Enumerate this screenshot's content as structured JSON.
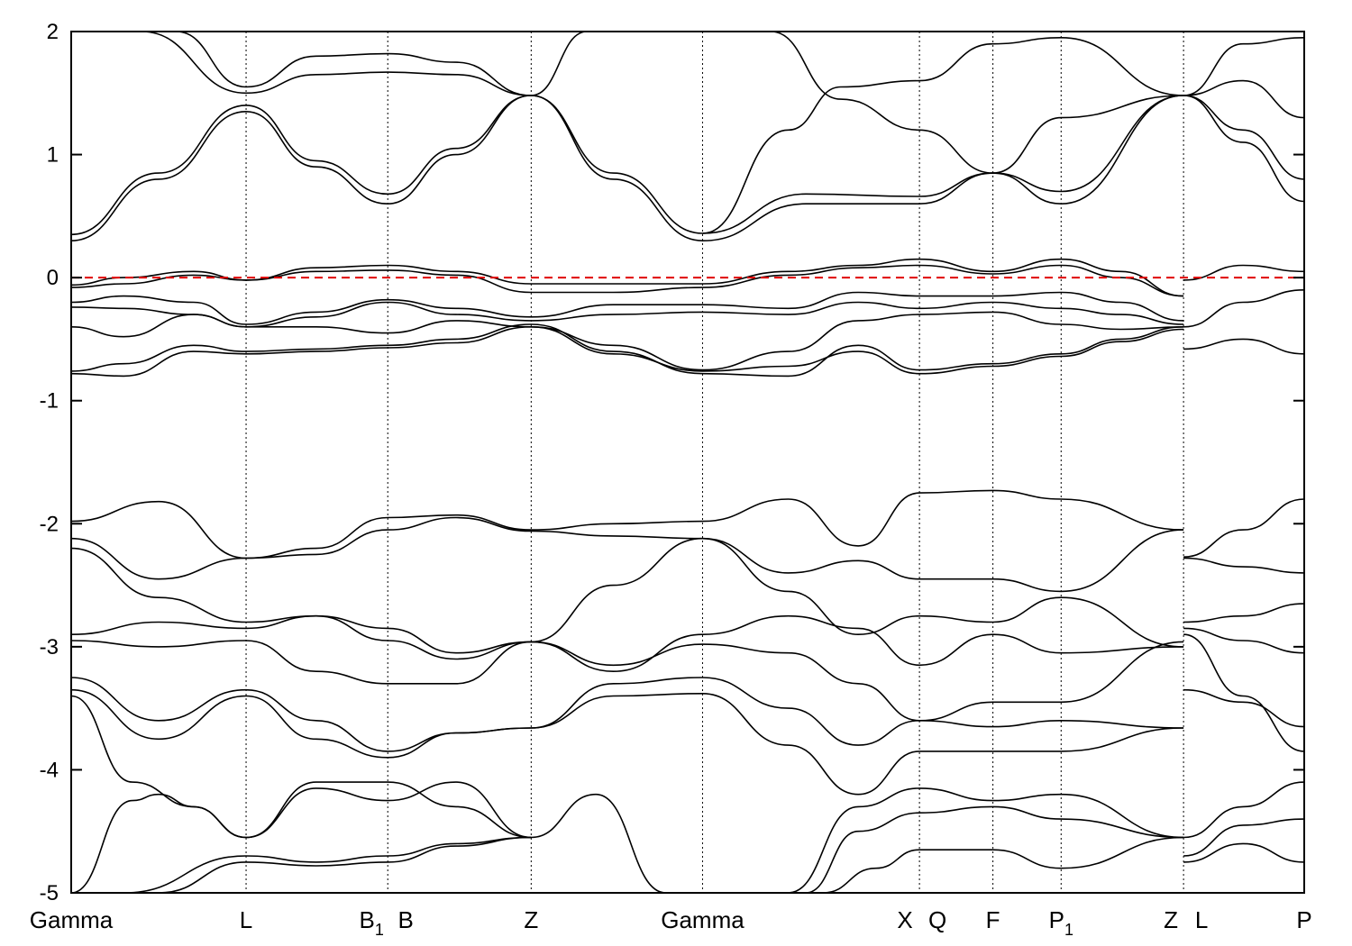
{
  "chart_data": {
    "type": "line",
    "title": "",
    "xlabel": "",
    "ylabel": "",
    "ylim": [
      -5,
      2
    ],
    "yticks": [
      -5,
      -4,
      -3,
      -2,
      -1,
      0,
      1,
      2
    ],
    "ytick_labels": [
      "-5",
      "-4",
      "-3",
      "-2",
      "-1",
      "0",
      "1",
      "2"
    ],
    "grid": false,
    "legend": "none",
    "fermi_level": {
      "y": 0,
      "style": "dashed",
      "color": "#e00000"
    },
    "high_symmetry_points": [
      {
        "label": "Gamma",
        "x": 0.0
      },
      {
        "label": "L",
        "x": 1.0
      },
      {
        "label": "B",
        "sub": "1",
        "x": 1.81
      },
      {
        "label": "B",
        "x": 1.81
      },
      {
        "label": "Z",
        "x": 2.63
      },
      {
        "label": "Gamma",
        "x": 3.61
      },
      {
        "label": "X",
        "x": 4.85
      },
      {
        "label": "Q",
        "x": 4.85
      },
      {
        "label": "F",
        "x": 5.27
      },
      {
        "label": "P",
        "sub": "1",
        "x": 5.66
      },
      {
        "label": "Z",
        "x": 6.36
      },
      {
        "label": "L",
        "x": 6.36
      },
      {
        "label": "P",
        "x": 7.05
      }
    ],
    "series": [
      {
        "x": [
          0,
          0.5,
          1,
          1.4,
          1.81,
          2.2,
          2.63,
          3.1,
          3.61,
          4.2,
          4.85,
          5.27,
          5.66,
          6.36
        ],
        "y": [
          0.3,
          0.8,
          1.35,
          0.9,
          0.6,
          1.0,
          1.48,
          0.8,
          0.3,
          0.6,
          0.6,
          0.85,
          0.6,
          1.48
        ]
      },
      {
        "x": [
          0,
          0.5,
          1,
          1.4,
          1.81,
          2.2,
          2.63,
          3.1,
          3.61,
          4.2,
          4.85,
          5.27,
          5.66,
          6.36
        ],
        "y": [
          0.35,
          0.85,
          1.4,
          0.95,
          0.68,
          1.05,
          1.48,
          0.85,
          0.36,
          0.68,
          0.66,
          0.85,
          0.7,
          1.48
        ]
      },
      {
        "x": [
          0.4,
          1,
          1.4,
          1.81,
          2.2,
          2.63
        ],
        "y": [
          2.0,
          1.5,
          1.65,
          1.67,
          1.65,
          1.48
        ]
      },
      {
        "x": [
          0.6,
          1,
          1.4,
          1.81,
          2.2,
          2.63
        ],
        "y": [
          2.0,
          1.55,
          1.8,
          1.82,
          1.75,
          1.48
        ]
      },
      {
        "x": [
          2.63,
          2.95
        ],
        "y": [
          1.48,
          2.0
        ]
      },
      {
        "x": [
          3.61,
          4.1,
          4.4,
          4.85,
          5.27,
          5.66,
          6.36
        ],
        "y": [
          0.36,
          1.2,
          1.55,
          1.6,
          1.9,
          1.95,
          1.48
        ]
      },
      {
        "x": [
          4.0,
          4.4,
          4.85,
          5.27,
          5.66,
          6.36
        ],
        "y": [
          2.0,
          1.45,
          1.2,
          0.85,
          1.3,
          1.48
        ]
      },
      {
        "x": [
          6.36,
          6.7,
          7.05
        ],
        "y": [
          1.48,
          1.9,
          1.95
        ]
      },
      {
        "x": [
          6.36,
          6.7,
          7.05
        ],
        "y": [
          1.48,
          1.2,
          0.8
        ]
      },
      {
        "x": [
          6.36,
          6.7,
          7.05
        ],
        "y": [
          1.48,
          1.1,
          0.62
        ]
      },
      {
        "x": [
          6.36,
          6.7,
          7.05
        ],
        "y": [
          1.48,
          1.6,
          1.3
        ]
      },
      {
        "x": [
          0,
          0.3,
          0.7,
          1,
          1.4,
          1.81,
          2.2,
          2.63,
          3.1,
          3.61,
          4.1,
          4.5,
          4.85,
          5.27,
          5.66,
          6.0,
          6.36
        ],
        "y": [
          -0.06,
          0.0,
          0.05,
          -0.02,
          0.08,
          0.1,
          0.05,
          -0.05,
          -0.05,
          -0.05,
          0.05,
          0.1,
          0.15,
          0.05,
          0.15,
          0.05,
          -0.15
        ]
      },
      {
        "x": [
          0,
          0.3,
          0.7,
          1,
          1.4,
          1.81,
          2.2,
          2.63,
          3.1,
          3.61,
          4.1,
          4.5,
          4.85,
          5.27,
          5.66,
          6.0,
          6.36
        ],
        "y": [
          -0.08,
          -0.05,
          0.02,
          -0.02,
          0.05,
          0.06,
          0.02,
          -0.12,
          -0.12,
          -0.08,
          0.02,
          0.08,
          0.1,
          0.03,
          0.1,
          0.0,
          -0.15
        ]
      },
      {
        "x": [
          0,
          0.3,
          0.7,
          1,
          1.4,
          1.81,
          2.2,
          2.63,
          3.1,
          3.61,
          4.1,
          4.5,
          4.85,
          5.27,
          5.66,
          6.0,
          6.36
        ],
        "y": [
          -0.2,
          -0.15,
          -0.2,
          -0.38,
          -0.28,
          -0.18,
          -0.25,
          -0.32,
          -0.22,
          -0.22,
          -0.25,
          -0.12,
          -0.15,
          -0.15,
          -0.12,
          -0.2,
          -0.35
        ]
      },
      {
        "x": [
          0,
          0.3,
          0.7,
          1,
          1.4,
          1.81,
          2.2,
          2.63,
          3.1,
          3.61,
          4.1,
          4.5,
          4.85,
          5.27,
          5.66,
          6.0,
          6.36
        ],
        "y": [
          -0.24,
          -0.25,
          -0.3,
          -0.4,
          -0.32,
          -0.2,
          -0.3,
          -0.35,
          -0.3,
          -0.28,
          -0.3,
          -0.2,
          -0.25,
          -0.2,
          -0.25,
          -0.3,
          -0.38
        ]
      },
      {
        "x": [
          0,
          0.3,
          0.7,
          1,
          1.4,
          1.81,
          2.2,
          2.63,
          3.1,
          3.61,
          4.1,
          4.5,
          4.85,
          5.27,
          5.66,
          6.0,
          6.36
        ],
        "y": [
          -0.4,
          -0.48,
          -0.3,
          -0.4,
          -0.4,
          -0.45,
          -0.35,
          -0.4,
          -0.55,
          -0.75,
          -0.6,
          -0.35,
          -0.3,
          -0.28,
          -0.38,
          -0.42,
          -0.4
        ]
      },
      {
        "x": [
          0,
          0.3,
          0.7,
          1,
          1.4,
          1.81,
          2.2,
          2.63,
          3.1,
          3.61,
          4.1,
          4.5,
          4.85,
          5.27,
          5.66,
          6.0,
          6.36
        ],
        "y": [
          -0.76,
          -0.7,
          -0.55,
          -0.6,
          -0.58,
          -0.55,
          -0.5,
          -0.38,
          -0.6,
          -0.78,
          -0.8,
          -0.55,
          -0.75,
          -0.7,
          -0.62,
          -0.5,
          -0.4
        ]
      },
      {
        "x": [
          0,
          0.3,
          0.7,
          1,
          1.4,
          1.81,
          2.2,
          2.63,
          3.1,
          3.61,
          4.1,
          4.5,
          4.85,
          5.27,
          5.66,
          6.0,
          6.36
        ],
        "y": [
          -0.78,
          -0.8,
          -0.6,
          -0.62,
          -0.6,
          -0.57,
          -0.53,
          -0.4,
          -0.62,
          -0.76,
          -0.72,
          -0.6,
          -0.78,
          -0.72,
          -0.64,
          -0.52,
          -0.42
        ]
      },
      {
        "x": [
          6.36,
          6.7,
          7.05
        ],
        "y": [
          -0.02,
          0.1,
          0.05
        ]
      },
      {
        "x": [
          6.36,
          6.7,
          7.05
        ],
        "y": [
          -0.4,
          -0.2,
          -0.1
        ]
      },
      {
        "x": [
          6.36,
          6.7,
          7.05
        ],
        "y": [
          -0.58,
          -0.5,
          -0.62
        ]
      },
      {
        "x": [
          0,
          0.5,
          1,
          1.4,
          1.81,
          2.2,
          2.63,
          3.1,
          3.61,
          4.1,
          4.5,
          4.85,
          5.27,
          5.66,
          6.36
        ],
        "y": [
          -1.98,
          -1.82,
          -2.28,
          -2.2,
          -1.95,
          -1.93,
          -2.05,
          -2.0,
          -1.98,
          -1.8,
          -2.18,
          -1.75,
          -1.73,
          -1.8,
          -2.05
        ]
      },
      {
        "x": [
          0,
          0.5,
          1,
          1.4,
          1.81,
          2.2,
          2.63,
          3.1,
          3.61,
          4.1,
          4.5,
          4.85,
          5.27,
          5.66,
          6.36
        ],
        "y": [
          -2.12,
          -2.45,
          -2.28,
          -2.25,
          -2.05,
          -1.95,
          -2.06,
          -2.1,
          -2.12,
          -2.4,
          -2.3,
          -2.45,
          -2.45,
          -2.55,
          -2.05
        ]
      },
      {
        "x": [
          0,
          0.5,
          1,
          1.4,
          1.81,
          2.2,
          2.63,
          3.1,
          3.61,
          4.1,
          4.5,
          4.85,
          5.27,
          5.66,
          6.36
        ],
        "y": [
          -2.2,
          -2.6,
          -2.8,
          -2.75,
          -2.85,
          -3.05,
          -2.96,
          -2.5,
          -2.12,
          -2.55,
          -2.9,
          -2.75,
          -2.8,
          -2.6,
          -3.0
        ]
      },
      {
        "x": [
          0,
          0.5,
          1,
          1.4,
          1.81,
          2.2,
          2.63,
          3.1,
          3.61,
          4.1,
          4.5,
          4.85,
          5.27,
          5.66,
          6.36
        ],
        "y": [
          -2.9,
          -2.8,
          -2.85,
          -2.75,
          -2.95,
          -3.1,
          -2.96,
          -3.2,
          -2.9,
          -2.75,
          -2.85,
          -3.15,
          -2.9,
          -3.05,
          -3.0
        ]
      },
      {
        "x": [
          0,
          0.5,
          1,
          1.4,
          1.81,
          2.2,
          2.63,
          3.1,
          3.61,
          4.1,
          4.5,
          4.85,
          5.27,
          5.66,
          6.36
        ],
        "y": [
          -2.95,
          -3.0,
          -2.95,
          -3.2,
          -3.3,
          -3.3,
          -2.96,
          -3.15,
          -2.98,
          -3.05,
          -3.3,
          -3.6,
          -3.45,
          -3.45,
          -2.96
        ]
      },
      {
        "x": [
          0,
          0.5,
          1,
          1.4,
          1.81,
          2.2,
          2.63,
          3.1,
          3.61,
          4.1,
          4.5,
          4.85,
          5.27,
          5.66,
          6.36
        ],
        "y": [
          -3.25,
          -3.6,
          -3.35,
          -3.6,
          -3.85,
          -3.7,
          -3.66,
          -3.3,
          -3.25,
          -3.5,
          -3.8,
          -3.6,
          -3.65,
          -3.6,
          -3.66
        ]
      },
      {
        "x": [
          0,
          0.5,
          1,
          1.4,
          1.81,
          2.2,
          2.63,
          3.1,
          3.61,
          4.1,
          4.5,
          4.85,
          5.27,
          5.66,
          6.36
        ],
        "y": [
          -3.35,
          -3.75,
          -3.4,
          -3.75,
          -3.9,
          -3.7,
          -3.66,
          -3.4,
          -3.38,
          -3.8,
          -4.2,
          -3.85,
          -3.85,
          -3.85,
          -3.66
        ]
      },
      {
        "x": [
          6.36,
          6.7,
          7.05
        ],
        "y": [
          -2.27,
          -2.05,
          -1.8
        ]
      },
      {
        "x": [
          6.36,
          6.7,
          7.05
        ],
        "y": [
          -2.28,
          -2.35,
          -2.4
        ]
      },
      {
        "x": [
          6.36,
          6.7,
          7.05
        ],
        "y": [
          -2.8,
          -2.75,
          -2.65
        ]
      },
      {
        "x": [
          6.36,
          6.7,
          7.05
        ],
        "y": [
          -2.85,
          -2.95,
          -3.05
        ]
      },
      {
        "x": [
          6.36,
          6.7,
          7.05
        ],
        "y": [
          -3.35,
          -3.45,
          -3.65
        ]
      },
      {
        "x": [
          6.36,
          6.7,
          7.05
        ],
        "y": [
          -2.9,
          -3.4,
          -3.85
        ]
      },
      {
        "x": [
          0,
          0.35,
          0.5,
          0.7,
          1
        ],
        "y": [
          -5.0,
          -4.25,
          -4.2,
          -4.3,
          -4.55
        ]
      },
      {
        "x": [
          0,
          0.35,
          0.7,
          1,
          1.4,
          1.81,
          2.2,
          2.63,
          3.0,
          3.4
        ],
        "y": [
          -3.4,
          -4.1,
          -4.3,
          -4.55,
          -4.15,
          -4.25,
          -4.1,
          -4.55,
          -4.2,
          -5.0
        ]
      },
      {
        "x": [
          1,
          1.4,
          1.81,
          2.2,
          2.63
        ],
        "y": [
          -4.55,
          -4.1,
          -4.1,
          -4.3,
          -4.55
        ]
      },
      {
        "x": [
          0.3,
          1,
          1.4,
          1.81,
          2.2,
          2.63
        ],
        "y": [
          -5.0,
          -4.7,
          -4.75,
          -4.7,
          -4.6,
          -4.55
        ]
      },
      {
        "x": [
          0.5,
          1,
          1.4,
          1.81,
          2.2,
          2.63
        ],
        "y": [
          -5.0,
          -4.75,
          -4.78,
          -4.75,
          -4.62,
          -4.55
        ]
      },
      {
        "x": [
          4.1,
          4.5,
          4.85,
          5.27,
          5.66,
          6.36
        ],
        "y": [
          -5.0,
          -4.3,
          -4.15,
          -4.25,
          -4.2,
          -4.55
        ]
      },
      {
        "x": [
          4.2,
          4.5,
          4.85,
          5.27,
          5.66,
          6.36
        ],
        "y": [
          -5.0,
          -4.5,
          -4.35,
          -4.3,
          -4.4,
          -4.55
        ]
      },
      {
        "x": [
          4.3,
          4.6,
          4.85,
          5.27,
          5.66,
          6.36
        ],
        "y": [
          -5.0,
          -4.8,
          -4.65,
          -4.65,
          -4.8,
          -4.55
        ]
      },
      {
        "x": [
          6.36,
          6.7,
          7.05
        ],
        "y": [
          -4.55,
          -4.3,
          -4.1
        ]
      },
      {
        "x": [
          6.36,
          6.7,
          7.05
        ],
        "y": [
          -4.75,
          -4.6,
          -4.75
        ]
      },
      {
        "x": [
          6.36,
          6.7,
          7.05
        ],
        "y": [
          -4.7,
          -4.45,
          -4.4
        ]
      }
    ]
  }
}
